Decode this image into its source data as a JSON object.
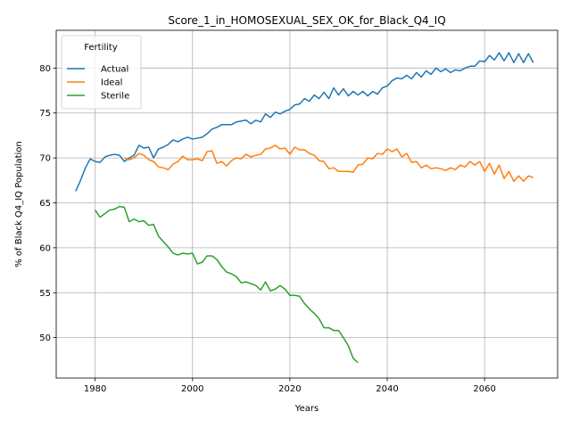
{
  "chart_data": {
    "type": "line",
    "title": "Score_1_in_HOMOSEXUAL_SEX_OK_for_Black_Q4_IQ",
    "xlabel": "Years",
    "ylabel": "% of Black Q4_IQ Population",
    "xlim": [
      1972,
      2075
    ],
    "ylim": [
      45.5,
      84.2
    ],
    "xticks": [
      1980,
      2000,
      2020,
      2040,
      2060
    ],
    "yticks": [
      50,
      55,
      60,
      65,
      70,
      75,
      80
    ],
    "grid": true,
    "legend": {
      "title": "Fertility",
      "placement": "top-left"
    },
    "series": [
      {
        "name": "Actual",
        "color": "#1f77b4",
        "x_start": 1976,
        "values": [
          66.3,
          67.5,
          68.9,
          69.9,
          69.6,
          69.5,
          70.1,
          70.3,
          70.4,
          70.3,
          69.6,
          70.0,
          70.3,
          71.4,
          71.1,
          71.2,
          70.0,
          71.0,
          71.2,
          71.5,
          72.0,
          71.8,
          72.1,
          72.3,
          72.1,
          72.2,
          72.3,
          72.7,
          73.2,
          73.4,
          73.7,
          73.7,
          73.7,
          74.0,
          74.1,
          74.2,
          73.8,
          74.2,
          74.0,
          74.9,
          74.5,
          75.1,
          74.9,
          75.2,
          75.4,
          75.9,
          76.0,
          76.6,
          76.3,
          77.0,
          76.6,
          77.3,
          76.6,
          77.8,
          77.0,
          77.7,
          76.9,
          77.4,
          77.0,
          77.4,
          76.9,
          77.4,
          77.1,
          77.8,
          78.0,
          78.6,
          78.9,
          78.8,
          79.2,
          78.8,
          79.5,
          79.0,
          79.7,
          79.3,
          80.0,
          79.6,
          79.9,
          79.5,
          79.8,
          79.7,
          80.0,
          80.2,
          80.2,
          80.8,
          80.7,
          81.4,
          80.9,
          81.7,
          80.8,
          81.7,
          80.6,
          81.6,
          80.6,
          81.6,
          80.6
        ]
      },
      {
        "name": "Ideal",
        "color": "#ff7f0e",
        "x_start": 1986,
        "values": [
          70.0,
          69.8,
          70.0,
          70.5,
          70.3,
          69.8,
          69.6,
          69.0,
          68.9,
          68.7,
          69.3,
          69.6,
          70.2,
          69.8,
          69.8,
          69.9,
          69.7,
          70.7,
          70.8,
          69.4,
          69.6,
          69.1,
          69.7,
          70.0,
          69.9,
          70.4,
          70.1,
          70.3,
          70.4,
          71.0,
          71.1,
          71.4,
          71.0,
          71.1,
          70.4,
          71.2,
          70.9,
          70.9,
          70.5,
          70.3,
          69.7,
          69.6,
          68.8,
          68.9,
          68.5,
          68.5,
          68.5,
          68.4,
          69.2,
          69.3,
          70.0,
          69.9,
          70.5,
          70.4,
          71.0,
          70.7,
          71.0,
          70.1,
          70.5,
          69.5,
          69.6,
          68.9,
          69.2,
          68.8,
          68.9,
          68.8,
          68.6,
          68.9,
          68.7,
          69.2,
          69.0,
          69.6,
          69.2,
          69.6,
          68.5,
          69.4,
          68.2,
          69.2,
          67.7,
          68.5,
          67.4,
          68.0,
          67.4,
          68.0,
          67.8
        ]
      },
      {
        "name": "Sterile",
        "color": "#2ca02c",
        "x_start": 1980,
        "values": [
          64.2,
          63.4,
          63.8,
          64.2,
          64.3,
          64.6,
          64.5,
          62.9,
          63.2,
          62.9,
          63.0,
          62.5,
          62.6,
          61.3,
          60.7,
          60.1,
          59.4,
          59.2,
          59.4,
          59.3,
          59.4,
          58.2,
          58.4,
          59.1,
          59.1,
          58.7,
          57.9,
          57.3,
          57.1,
          56.8,
          56.1,
          56.2,
          56.0,
          55.8,
          55.3,
          56.2,
          55.2,
          55.4,
          55.8,
          55.4,
          54.7,
          54.7,
          54.6,
          53.8,
          53.2,
          52.7,
          52.1,
          51.1,
          51.1,
          50.8,
          50.8,
          50.0,
          49.1,
          47.7,
          47.2
        ]
      }
    ]
  }
}
